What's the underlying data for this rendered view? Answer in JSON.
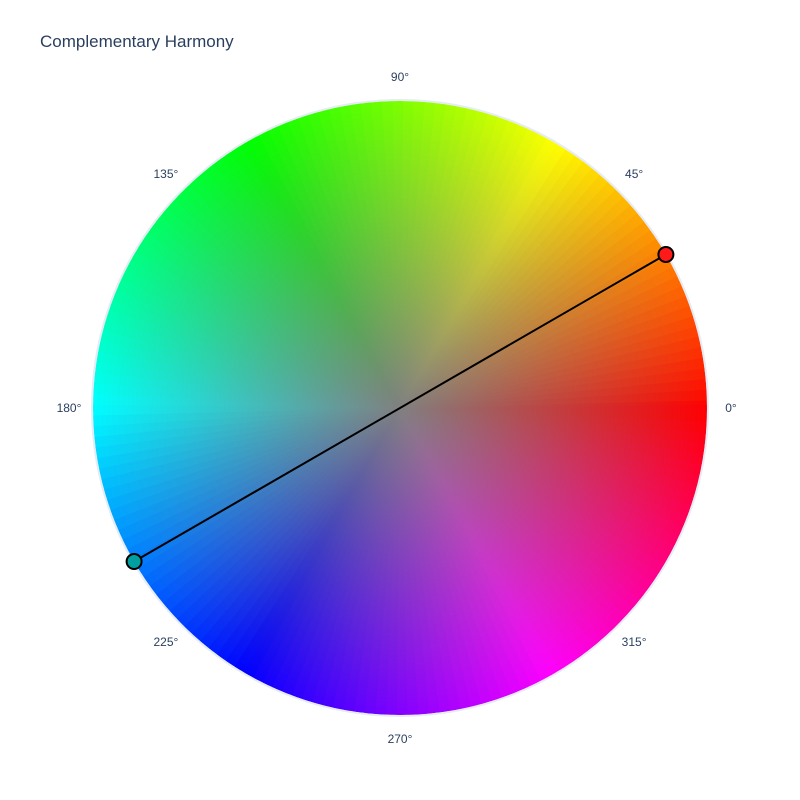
{
  "chart_data": {
    "type": "polar",
    "title": "Complementary Harmony",
    "angular_tick_labels": [
      "0°",
      "45°",
      "90°",
      "135°",
      "180°",
      "225°",
      "270°",
      "315°"
    ],
    "angular_ticks": [
      0,
      45,
      90,
      135,
      180,
      225,
      270,
      315
    ],
    "color_wheel": "hue-saturation",
    "series": [
      {
        "type": "line+markers",
        "theta": [
          30,
          210
        ],
        "r": [
          1,
          1
        ],
        "marker_colors": [
          "#ff1a1a",
          "#00a0a0"
        ],
        "line_color": "#000000"
      }
    ],
    "grid": false
  }
}
